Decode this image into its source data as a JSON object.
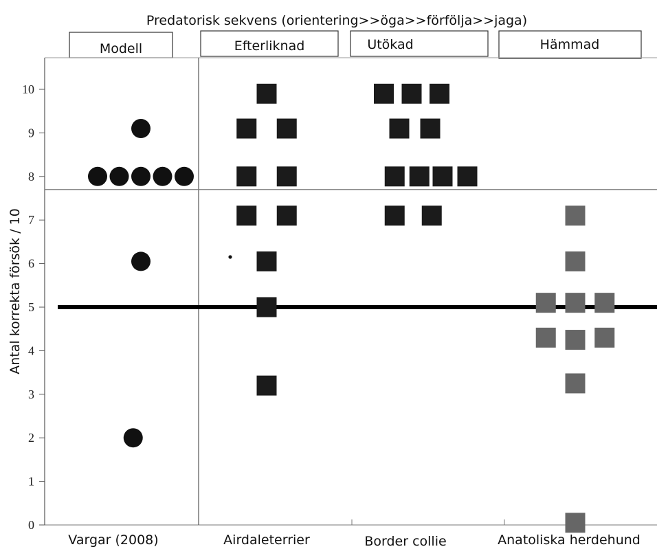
{
  "chart_data": {
    "type": "scatter",
    "title": "Predatorisk sekvens (orientering>>öga>>förfölja>>jaga)",
    "ylabel": "Antal korrekta försök / 10",
    "ylim": [
      0,
      10
    ],
    "yticks": [
      0,
      1,
      2,
      3,
      4,
      5,
      6,
      7,
      8,
      9,
      10
    ],
    "reference_lines": [
      5,
      7.7
    ],
    "categories": [
      "Vargar (2008)",
      "Airdaleterrier",
      "Border collie",
      "Anatoliska herdehund"
    ],
    "group_headers": [
      "Modell",
      "Efterliknad",
      "Utökad",
      "Hämmad"
    ],
    "colors": {
      "wolves": "#111111",
      "dogs": "#1b1b1b",
      "inhibited": "#666666"
    },
    "series": [
      {
        "category": "Vargar (2008)",
        "marker": "circle",
        "values": [
          {
            "x": 0.2,
            "y": 9.1
          },
          {
            "x": -0.08,
            "y": 8.0
          },
          {
            "x": 0.06,
            "y": 8.0
          },
          {
            "x": 0.2,
            "y": 8.0
          },
          {
            "x": 0.34,
            "y": 8.0
          },
          {
            "x": 0.48,
            "y": 8.0
          },
          {
            "x": 0.2,
            "y": 6.05
          },
          {
            "x": 0.15,
            "y": 2.0
          }
        ]
      },
      {
        "category": "Airdaleterrier",
        "marker": "square",
        "values": [
          {
            "x": 0.0,
            "y": 9.9
          },
          {
            "x": -0.13,
            "y": 9.1
          },
          {
            "x": 0.13,
            "y": 9.1
          },
          {
            "x": -0.13,
            "y": 8.0
          },
          {
            "x": 0.13,
            "y": 8.0
          },
          {
            "x": -0.13,
            "y": 7.1
          },
          {
            "x": 0.13,
            "y": 7.1
          },
          {
            "x": 0.0,
            "y": 6.05
          },
          {
            "x": 0.0,
            "y": 5.0
          },
          {
            "x": 0.0,
            "y": 3.2
          }
        ]
      },
      {
        "category": "Border collie",
        "marker": "square",
        "values": [
          {
            "x": -0.14,
            "y": 9.9
          },
          {
            "x": 0.04,
            "y": 9.9
          },
          {
            "x": 0.22,
            "y": 9.9
          },
          {
            "x": -0.04,
            "y": 9.1
          },
          {
            "x": 0.16,
            "y": 9.1
          },
          {
            "x": -0.07,
            "y": 8.0
          },
          {
            "x": 0.09,
            "y": 8.0
          },
          {
            "x": 0.24,
            "y": 8.0
          },
          {
            "x": 0.4,
            "y": 8.0
          },
          {
            "x": -0.07,
            "y": 7.1
          },
          {
            "x": 0.17,
            "y": 7.1
          }
        ]
      },
      {
        "category": "Anatoliska herdehund",
        "marker": "square",
        "values": [
          {
            "x": 0.0,
            "y": 7.1
          },
          {
            "x": 0.0,
            "y": 6.05
          },
          {
            "x": -0.19,
            "y": 5.1
          },
          {
            "x": 0.0,
            "y": 5.1
          },
          {
            "x": 0.19,
            "y": 5.1
          },
          {
            "x": -0.19,
            "y": 4.3
          },
          {
            "x": 0.0,
            "y": 4.25
          },
          {
            "x": 0.19,
            "y": 4.3
          },
          {
            "x": 0.0,
            "y": 3.25
          },
          {
            "x": 0.0,
            "y": 0.05
          }
        ]
      }
    ]
  }
}
